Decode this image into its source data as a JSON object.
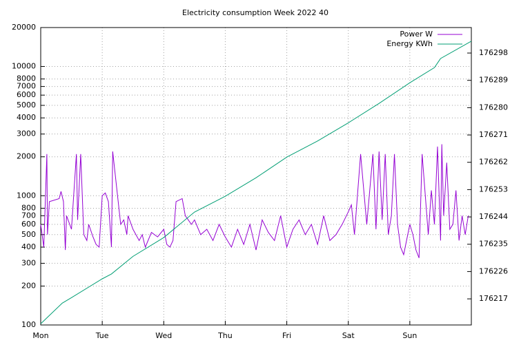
{
  "chart_data": {
    "type": "line",
    "title": "Electricity consumption Week 2022 40",
    "xlim": [
      0,
      7
    ],
    "xticks": [
      {
        "value": 0,
        "label": "Mon"
      },
      {
        "value": 1,
        "label": "Tue"
      },
      {
        "value": 2,
        "label": "Wed"
      },
      {
        "value": 3,
        "label": "Thu"
      },
      {
        "value": 4,
        "label": "Fri"
      },
      {
        "value": 5,
        "label": "Sat"
      },
      {
        "value": 6,
        "label": "Sun"
      }
    ],
    "ylim": [
      100,
      20000
    ],
    "log_y": true,
    "yticks": [
      100,
      200,
      300,
      400,
      500,
      600,
      700,
      800,
      1000,
      2000,
      3000,
      4000,
      5000,
      6000,
      7000,
      8000,
      10000,
      20000
    ],
    "y2lim": [
      176208.4,
      176306.4
    ],
    "y2ticks": [
      176217,
      176226,
      176235,
      176244,
      176253,
      176262,
      176271,
      176280,
      176289,
      176298
    ],
    "grid": true,
    "legend": "top-right",
    "series": [
      {
        "name": "Power W",
        "color": "#9400d3",
        "x": [
          0,
          0.05,
          0.1,
          0.11,
          0.14,
          0.3,
          0.33,
          0.37,
          0.4,
          0.42,
          0.5,
          0.58,
          0.6,
          0.65,
          0.7,
          0.75,
          0.78,
          0.85,
          0.9,
          0.95,
          1.0,
          1.05,
          1.1,
          1.15,
          1.17,
          1.3,
          1.35,
          1.4,
          1.42,
          1.5,
          1.6,
          1.65,
          1.7,
          1.8,
          1.9,
          2.0,
          2.05,
          2.1,
          2.15,
          2.2,
          2.3,
          2.35,
          2.45,
          2.5,
          2.6,
          2.7,
          2.8,
          2.9,
          3.0,
          3.1,
          3.2,
          3.3,
          3.4,
          3.5,
          3.6,
          3.7,
          3.8,
          3.9,
          4.0,
          4.1,
          4.2,
          4.3,
          4.4,
          4.5,
          4.6,
          4.7,
          4.8,
          4.9,
          5.0,
          5.05,
          5.1,
          5.2,
          5.3,
          5.4,
          5.45,
          5.5,
          5.55,
          5.6,
          5.65,
          5.7,
          5.75,
          5.8,
          5.85,
          5.9,
          6.0,
          6.05,
          6.1,
          6.15,
          6.2,
          6.3,
          6.35,
          6.4,
          6.45,
          6.5,
          6.52,
          6.55,
          6.6,
          6.65,
          6.7,
          6.75,
          6.8,
          6.85,
          6.9,
          6.95
        ],
        "values": [
          600,
          400,
          2100,
          500,
          900,
          950,
          1080,
          900,
          380,
          700,
          550,
          2100,
          650,
          2100,
          500,
          450,
          600,
          480,
          420,
          400,
          1000,
          1050,
          900,
          400,
          2200,
          600,
          650,
          500,
          700,
          550,
          450,
          500,
          400,
          520,
          480,
          550,
          420,
          400,
          450,
          900,
          950,
          700,
          600,
          650,
          500,
          550,
          450,
          600,
          480,
          400,
          550,
          420,
          600,
          380,
          650,
          520,
          450,
          700,
          400,
          550,
          650,
          500,
          600,
          420,
          700,
          450,
          500,
          600,
          750,
          850,
          500,
          2100,
          600,
          2100,
          550,
          2200,
          650,
          2100,
          500,
          700,
          2100,
          600,
          400,
          350,
          600,
          500,
          380,
          330,
          2100,
          500,
          1100,
          600,
          2400,
          450,
          2500,
          700,
          1800,
          550,
          600,
          1100,
          450,
          700,
          500,
          700
        ]
      },
      {
        "name": "Energy KWh",
        "color": "#009e73",
        "axis": "y2",
        "x": [
          0,
          0.35,
          0.5,
          1,
          1.15,
          1.5,
          2,
          2.5,
          3,
          3.5,
          4,
          4.5,
          5,
          5.5,
          6,
          6.4,
          6.5,
          7
        ],
        "values": [
          176208.8,
          176215.6,
          176217.4,
          176223.6,
          176225.2,
          176231,
          176237.2,
          176245.6,
          176250.8,
          176256.9,
          176263.7,
          176269,
          176275,
          176281.4,
          176288.2,
          176293.2,
          176296.2,
          176301.9
        ]
      }
    ]
  }
}
